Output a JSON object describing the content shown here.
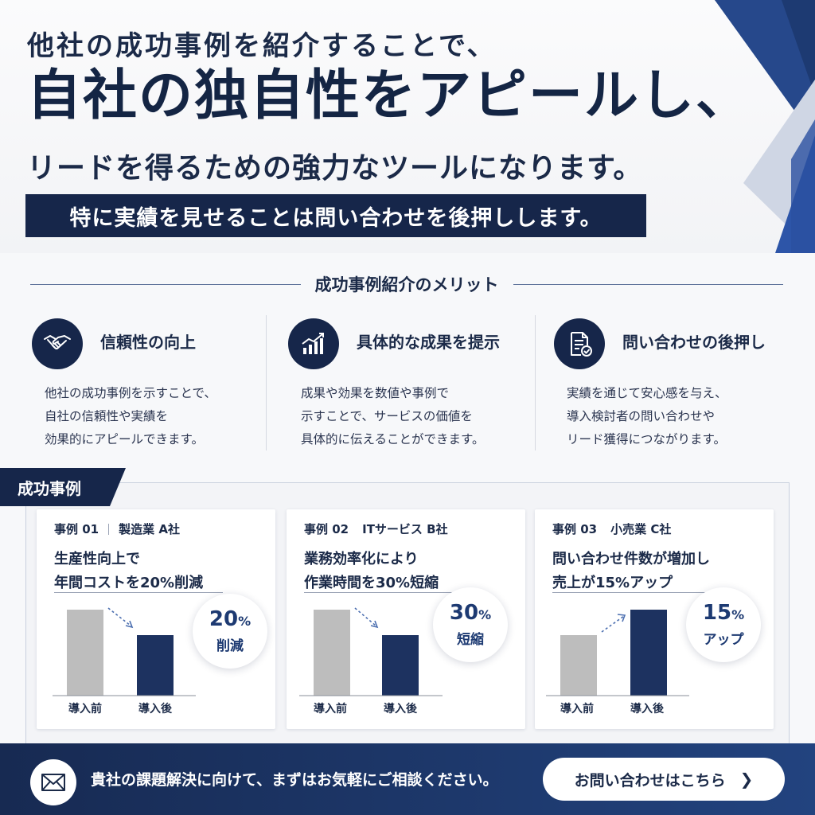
{
  "hero": {
    "line1": "他社の成功事例を紹介することで、",
    "line2": "自社の独自性をアピールし、",
    "line3": "リードを得るための強力なツールになります。",
    "band": "特に実績を見せることは問い合わせを後押しします。"
  },
  "merits": {
    "heading": "成功事例紹介のメリット",
    "items": [
      {
        "icon": "handshake-icon",
        "title": "信頼性の向上",
        "lines": [
          "他社の成功事例を示すことで、",
          "自社の信頼性や実績を",
          "効果的にアピールできます。"
        ]
      },
      {
        "icon": "bar-chart-growth-icon",
        "title": "具体的な成果を提示",
        "lines": [
          "成果や効果を数値や事例で",
          "示すことで、サービスの価値を",
          "具体的に伝えることができます。"
        ]
      },
      {
        "icon": "document-check-icon",
        "title": "問い合わせの後押し",
        "lines": [
          "実績を通じて安心感を与え、",
          "導入検討者の問い合わせや",
          "リード獲得につながります。"
        ]
      }
    ]
  },
  "cases": {
    "tab": "成功事例",
    "items": [
      {
        "num": "事例 01",
        "company": "製造業 A社",
        "headline1": "生産性向上で",
        "headline2": "年間コストを20%削減",
        "badge_value": "20",
        "badge_unit": "%",
        "badge_label": "削減",
        "before_label": "導入前",
        "after_label": "導入後"
      },
      {
        "num": "事例 02",
        "company": "ITサービス B社",
        "headline1": "業務効率化により",
        "headline2": "作業時間を30%短縮",
        "badge_value": "30",
        "badge_unit": "%",
        "badge_label": "短縮",
        "before_label": "導入前",
        "after_label": "導入後"
      },
      {
        "num": "事例 03",
        "company": "小売業 C社",
        "headline1": "問い合わせ件数が増加し",
        "headline2": "売上が15%アップ",
        "badge_value": "15",
        "badge_unit": "%",
        "badge_label": "アップ",
        "before_label": "導入前",
        "after_label": "導入後"
      }
    ]
  },
  "footer": {
    "message": "貴社の課題解決に向けて、まずはお気軽にご相談ください。",
    "cta_label": "お問い合わせはこちら",
    "cta_arrow": "❯"
  },
  "colors": {
    "navy": "#16264a",
    "accent": "#1d3a72",
    "gray_bar": "#bdbdbd"
  }
}
